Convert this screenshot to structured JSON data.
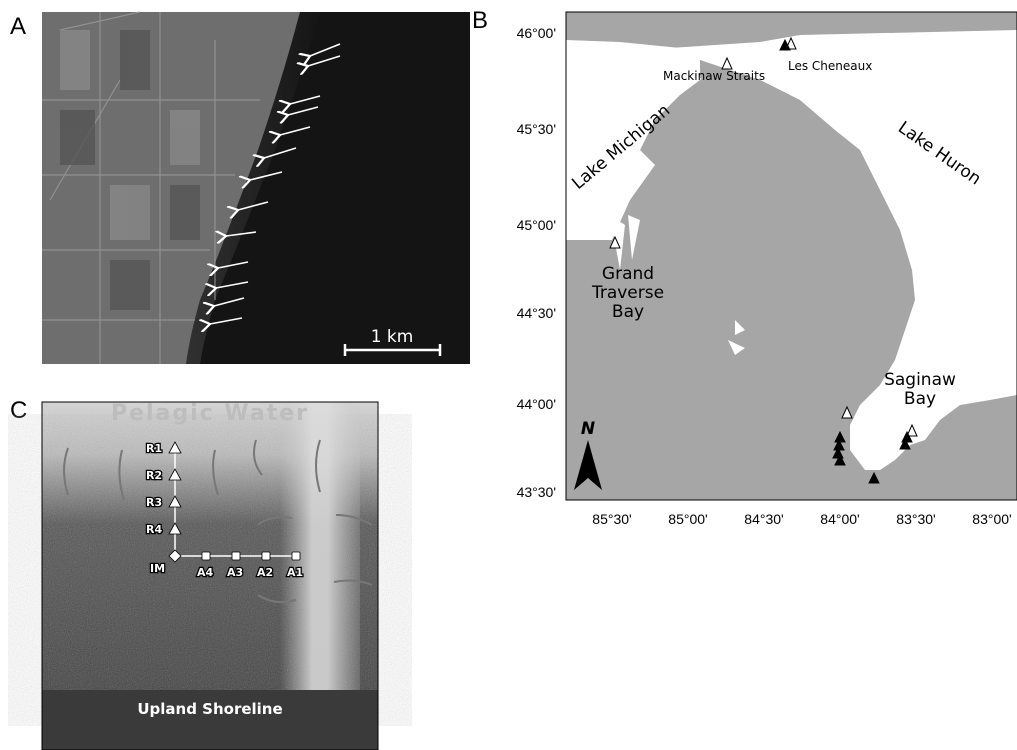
{
  "panels": {
    "a": {
      "label": "A",
      "scale_bar": "1 km"
    },
    "b": {
      "label": "B",
      "lat_ticks": [
        "46°00'",
        "45°30'",
        "45°00'",
        "44°30'",
        "44°00'",
        "43°30'"
      ],
      "lon_ticks": [
        "85°30'",
        "85°00'",
        "84°30'",
        "84°00'",
        "83°30'",
        "83°00'"
      ],
      "mackinaw": "Mackinaw Straits",
      "cheneaux": "Les Cheneaux",
      "lake_michigan": "Lake Michigan",
      "lake_huron": "Lake Huron",
      "grand_traverse_bay": [
        "Grand",
        "Traverse",
        "Bay"
      ],
      "saginaw_bay": [
        "Saginaw",
        "Bay"
      ],
      "north": "N"
    },
    "c": {
      "label": "C",
      "top": "Pelagic Water",
      "bottom": "Upland Shoreline",
      "stations": [
        "R1",
        "R2",
        "R3",
        "R4",
        "IM",
        "A4",
        "A3",
        "A2",
        "A1"
      ]
    }
  }
}
